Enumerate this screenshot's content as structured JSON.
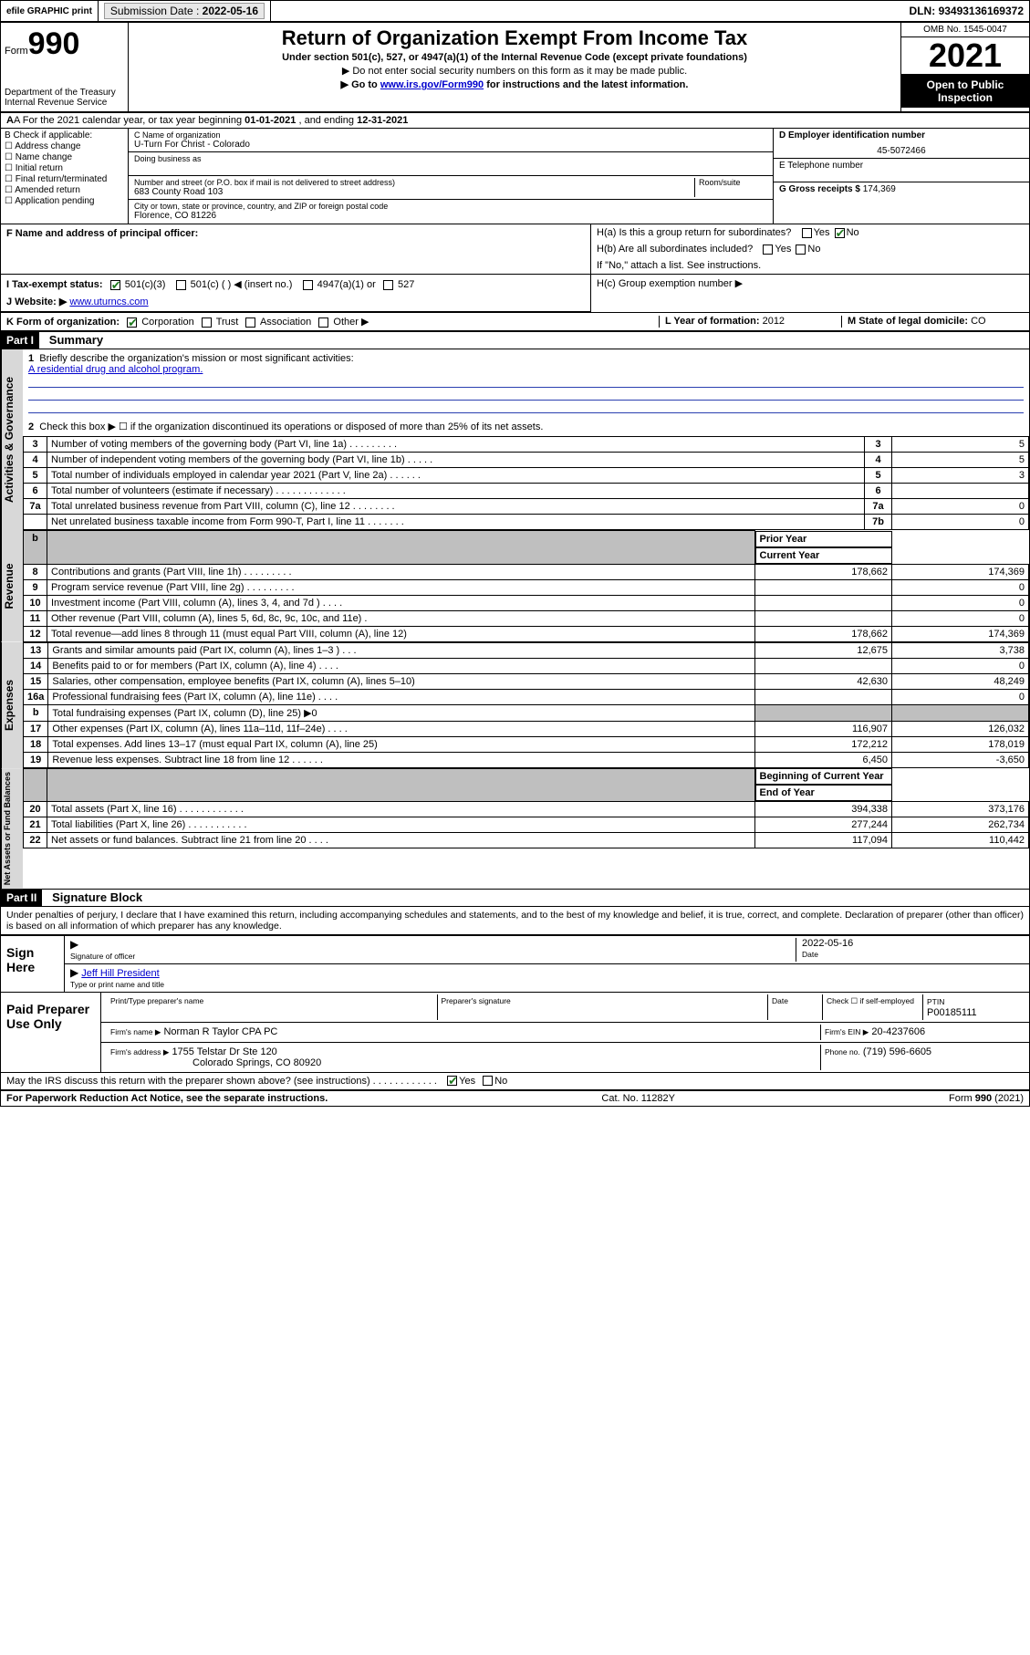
{
  "topbar": {
    "efile": "efile GRAPHIC print",
    "submission_label": "Submission Date :",
    "submission_date": "2022-05-16",
    "dln_label": "DLN:",
    "dln": "93493136169372"
  },
  "header": {
    "form_word": "Form",
    "form_num": "990",
    "dept": "Department of the Treasury",
    "irs": "Internal Revenue Service",
    "title": "Return of Organization Exempt From Income Tax",
    "sub": "Under section 501(c), 527, or 4947(a)(1) of the Internal Revenue Code (except private foundations)",
    "note1": "▶ Do not enter social security numbers on this form as it may be made public.",
    "note2_pre": "▶ Go to ",
    "note2_link": "www.irs.gov/Form990",
    "note2_post": " for instructions and the latest information.",
    "omb": "OMB No. 1545-0047",
    "year": "2021",
    "inspect": "Open to Public Inspection"
  },
  "rowA": {
    "text_pre": "A For the 2021 calendar year, or tax year beginning ",
    "begin": "01-01-2021",
    "mid": " , and ending ",
    "end": "12-31-2021"
  },
  "colB": {
    "label": "B Check if applicable:",
    "items": [
      "Address change",
      "Name change",
      "Initial return",
      "Final return/terminated",
      "Amended return",
      "Application pending"
    ]
  },
  "colC": {
    "name_lbl": "C Name of organization",
    "name": "U-Turn For Christ - Colorado",
    "dba_lbl": "Doing business as",
    "street_lbl": "Number and street (or P.O. box if mail is not delivered to street address)",
    "room_lbl": "Room/suite",
    "street": "683 County Road 103",
    "city_lbl": "City or town, state or province, country, and ZIP or foreign postal code",
    "city": "Florence, CO  81226",
    "officer_lbl": "F Name and address of principal officer:"
  },
  "colD": {
    "ein_lbl": "D Employer identification number",
    "ein": "45-5072466",
    "tel_lbl": "E Telephone number",
    "gross_lbl": "G Gross receipts $",
    "gross": "174,369"
  },
  "H": {
    "a_lbl": "H(a) Is this a group return for subordinates?",
    "b_lbl": "H(b) Are all subordinates included?",
    "b_note": "If \"No,\" attach a list. See instructions.",
    "c_lbl": "H(c) Group exemption number ▶",
    "yes": "Yes",
    "no": "No"
  },
  "I": {
    "lbl": "I   Tax-exempt status:",
    "c3": "501(c)(3)",
    "c": "501(c) (  ) ◀ (insert no.)",
    "a1": "4947(a)(1) or",
    "s527": "527"
  },
  "J": {
    "lbl": "J   Website: ▶",
    "val": "www.uturncs.com"
  },
  "K": {
    "lbl": "K Form of organization:",
    "opts": [
      "Corporation",
      "Trust",
      "Association",
      "Other ▶"
    ],
    "L_lbl": "L Year of formation:",
    "L_val": "2012",
    "M_lbl": "M State of legal domicile:",
    "M_val": "CO"
  },
  "part1": {
    "tag": "Part I",
    "title": "Summary"
  },
  "sections": {
    "gov": "Activities & Governance",
    "rev": "Revenue",
    "exp": "Expenses",
    "net": "Net Assets or Fund Balances"
  },
  "summary": {
    "q1": "Briefly describe the organization's mission or most significant activities:",
    "mission": "A residential drug and alcohol program.",
    "q2": "Check this box ▶ ☐  if the organization discontinued its operations or disposed of more than 25% of its net assets.",
    "rows_gov": [
      {
        "n": "3",
        "d": "Number of voting members of the governing body (Part VI, line 1a)  .   .   .   .   .   .   .   .   .",
        "b": "3",
        "v": "5"
      },
      {
        "n": "4",
        "d": "Number of independent voting members of the governing body (Part VI, line 1b)   .   .   .   .   .",
        "b": "4",
        "v": "5"
      },
      {
        "n": "5",
        "d": "Total number of individuals employed in calendar year 2021 (Part V, line 2a)   .   .   .   .   .   .",
        "b": "5",
        "v": "3"
      },
      {
        "n": "6",
        "d": "Total number of volunteers (estimate if necessary)   .   .   .   .   .   .   .   .   .   .   .   .   .",
        "b": "6",
        "v": ""
      },
      {
        "n": "7a",
        "d": "Total unrelated business revenue from Part VIII, column (C), line 12   .   .   .   .   .   .   .   .",
        "b": "7a",
        "v": "0"
      },
      {
        "n": "",
        "d": "Net unrelated business taxable income from Form 990-T, Part I, line 11   .   .   .   .   .   .   .",
        "b": "7b",
        "v": "0"
      }
    ],
    "col_prior": "Prior Year",
    "col_curr": "Current Year",
    "rows_rev": [
      {
        "n": "8",
        "d": "Contributions and grants (Part VIII, line 1h)   .   .   .   .   .   .   .   .   .",
        "p": "178,662",
        "c": "174,369"
      },
      {
        "n": "9",
        "d": "Program service revenue (Part VIII, line 2g)   .   .   .   .   .   .   .   .   .",
        "p": "",
        "c": "0"
      },
      {
        "n": "10",
        "d": "Investment income (Part VIII, column (A), lines 3, 4, and 7d )   .   .   .   .",
        "p": "",
        "c": "0"
      },
      {
        "n": "11",
        "d": "Other revenue (Part VIII, column (A), lines 5, 6d, 8c, 9c, 10c, and 11e)   .",
        "p": "",
        "c": "0"
      },
      {
        "n": "12",
        "d": "Total revenue—add lines 8 through 11 (must equal Part VIII, column (A), line 12)",
        "p": "178,662",
        "c": "174,369"
      }
    ],
    "rows_exp": [
      {
        "n": "13",
        "d": "Grants and similar amounts paid (Part IX, column (A), lines 1–3 )   .   .   .",
        "p": "12,675",
        "c": "3,738"
      },
      {
        "n": "14",
        "d": "Benefits paid to or for members (Part IX, column (A), line 4)   .   .   .   .",
        "p": "",
        "c": "0"
      },
      {
        "n": "15",
        "d": "Salaries, other compensation, employee benefits (Part IX, column (A), lines 5–10)",
        "p": "42,630",
        "c": "48,249"
      },
      {
        "n": "16a",
        "d": "Professional fundraising fees (Part IX, column (A), line 11e)   .   .   .   .",
        "p": "",
        "c": "0"
      },
      {
        "n": "b",
        "d": "Total fundraising expenses (Part IX, column (D), line 25) ▶0",
        "p": "__shade__",
        "c": "__shade__"
      },
      {
        "n": "17",
        "d": "Other expenses (Part IX, column (A), lines 11a–11d, 11f–24e)   .   .   .   .",
        "p": "116,907",
        "c": "126,032"
      },
      {
        "n": "18",
        "d": "Total expenses. Add lines 13–17 (must equal Part IX, column (A), line 25)",
        "p": "172,212",
        "c": "178,019"
      },
      {
        "n": "19",
        "d": "Revenue less expenses. Subtract line 18 from line 12   .   .   .   .   .   .",
        "p": "6,450",
        "c": "-3,650"
      }
    ],
    "col_begin": "Beginning of Current Year",
    "col_end": "End of Year",
    "rows_net": [
      {
        "n": "20",
        "d": "Total assets (Part X, line 16)   .   .   .   .   .   .   .   .   .   .   .   .",
        "p": "394,338",
        "c": "373,176"
      },
      {
        "n": "21",
        "d": "Total liabilities (Part X, line 26)  .   .   .   .   .   .   .   .   .   .   .",
        "p": "277,244",
        "c": "262,734"
      },
      {
        "n": "22",
        "d": "Net assets or fund balances. Subtract line 21 from line 20   .   .   .   .",
        "p": "117,094",
        "c": "110,442"
      }
    ]
  },
  "part2": {
    "tag": "Part II",
    "title": "Signature Block"
  },
  "penalty": "Under penalties of perjury, I declare that I have examined this return, including accompanying schedules and statements, and to the best of my knowledge and belief, it is true, correct, and complete. Declaration of preparer (other than officer) is based on all information of which preparer has any knowledge.",
  "sign": {
    "here": "Sign Here",
    "sig_lbl": "Signature of officer",
    "date_lbl": "Date",
    "date": "2022-05-16",
    "name": "Jeff Hill President",
    "name_lbl": "Type or print name and title"
  },
  "paid": {
    "label": "Paid Preparer Use Only",
    "h1": "Print/Type preparer's name",
    "h2": "Preparer's signature",
    "h3": "Date",
    "h4_pre": "Check ☐ if self-employed",
    "h5": "PTIN",
    "ptin": "P00185111",
    "firm_lbl": "Firm's name    ▶",
    "firm": "Norman R Taylor CPA PC",
    "ein_lbl": "Firm's EIN ▶",
    "ein": "20-4237606",
    "addr_lbl": "Firm's address ▶",
    "addr1": "1755 Telstar Dr Ste 120",
    "addr2": "Colorado Springs, CO  80920",
    "phone_lbl": "Phone no.",
    "phone": "(719) 596-6605"
  },
  "discuss": {
    "q": "May the IRS discuss this return with the preparer shown above? (see instructions)   .   .   .   .   .   .   .   .   .   .   .   .",
    "yes": "Yes",
    "no": "No"
  },
  "footer": {
    "left": "For Paperwork Reduction Act Notice, see the separate instructions.",
    "mid": "Cat. No. 11282Y",
    "right": "Form 990 (2021)"
  }
}
